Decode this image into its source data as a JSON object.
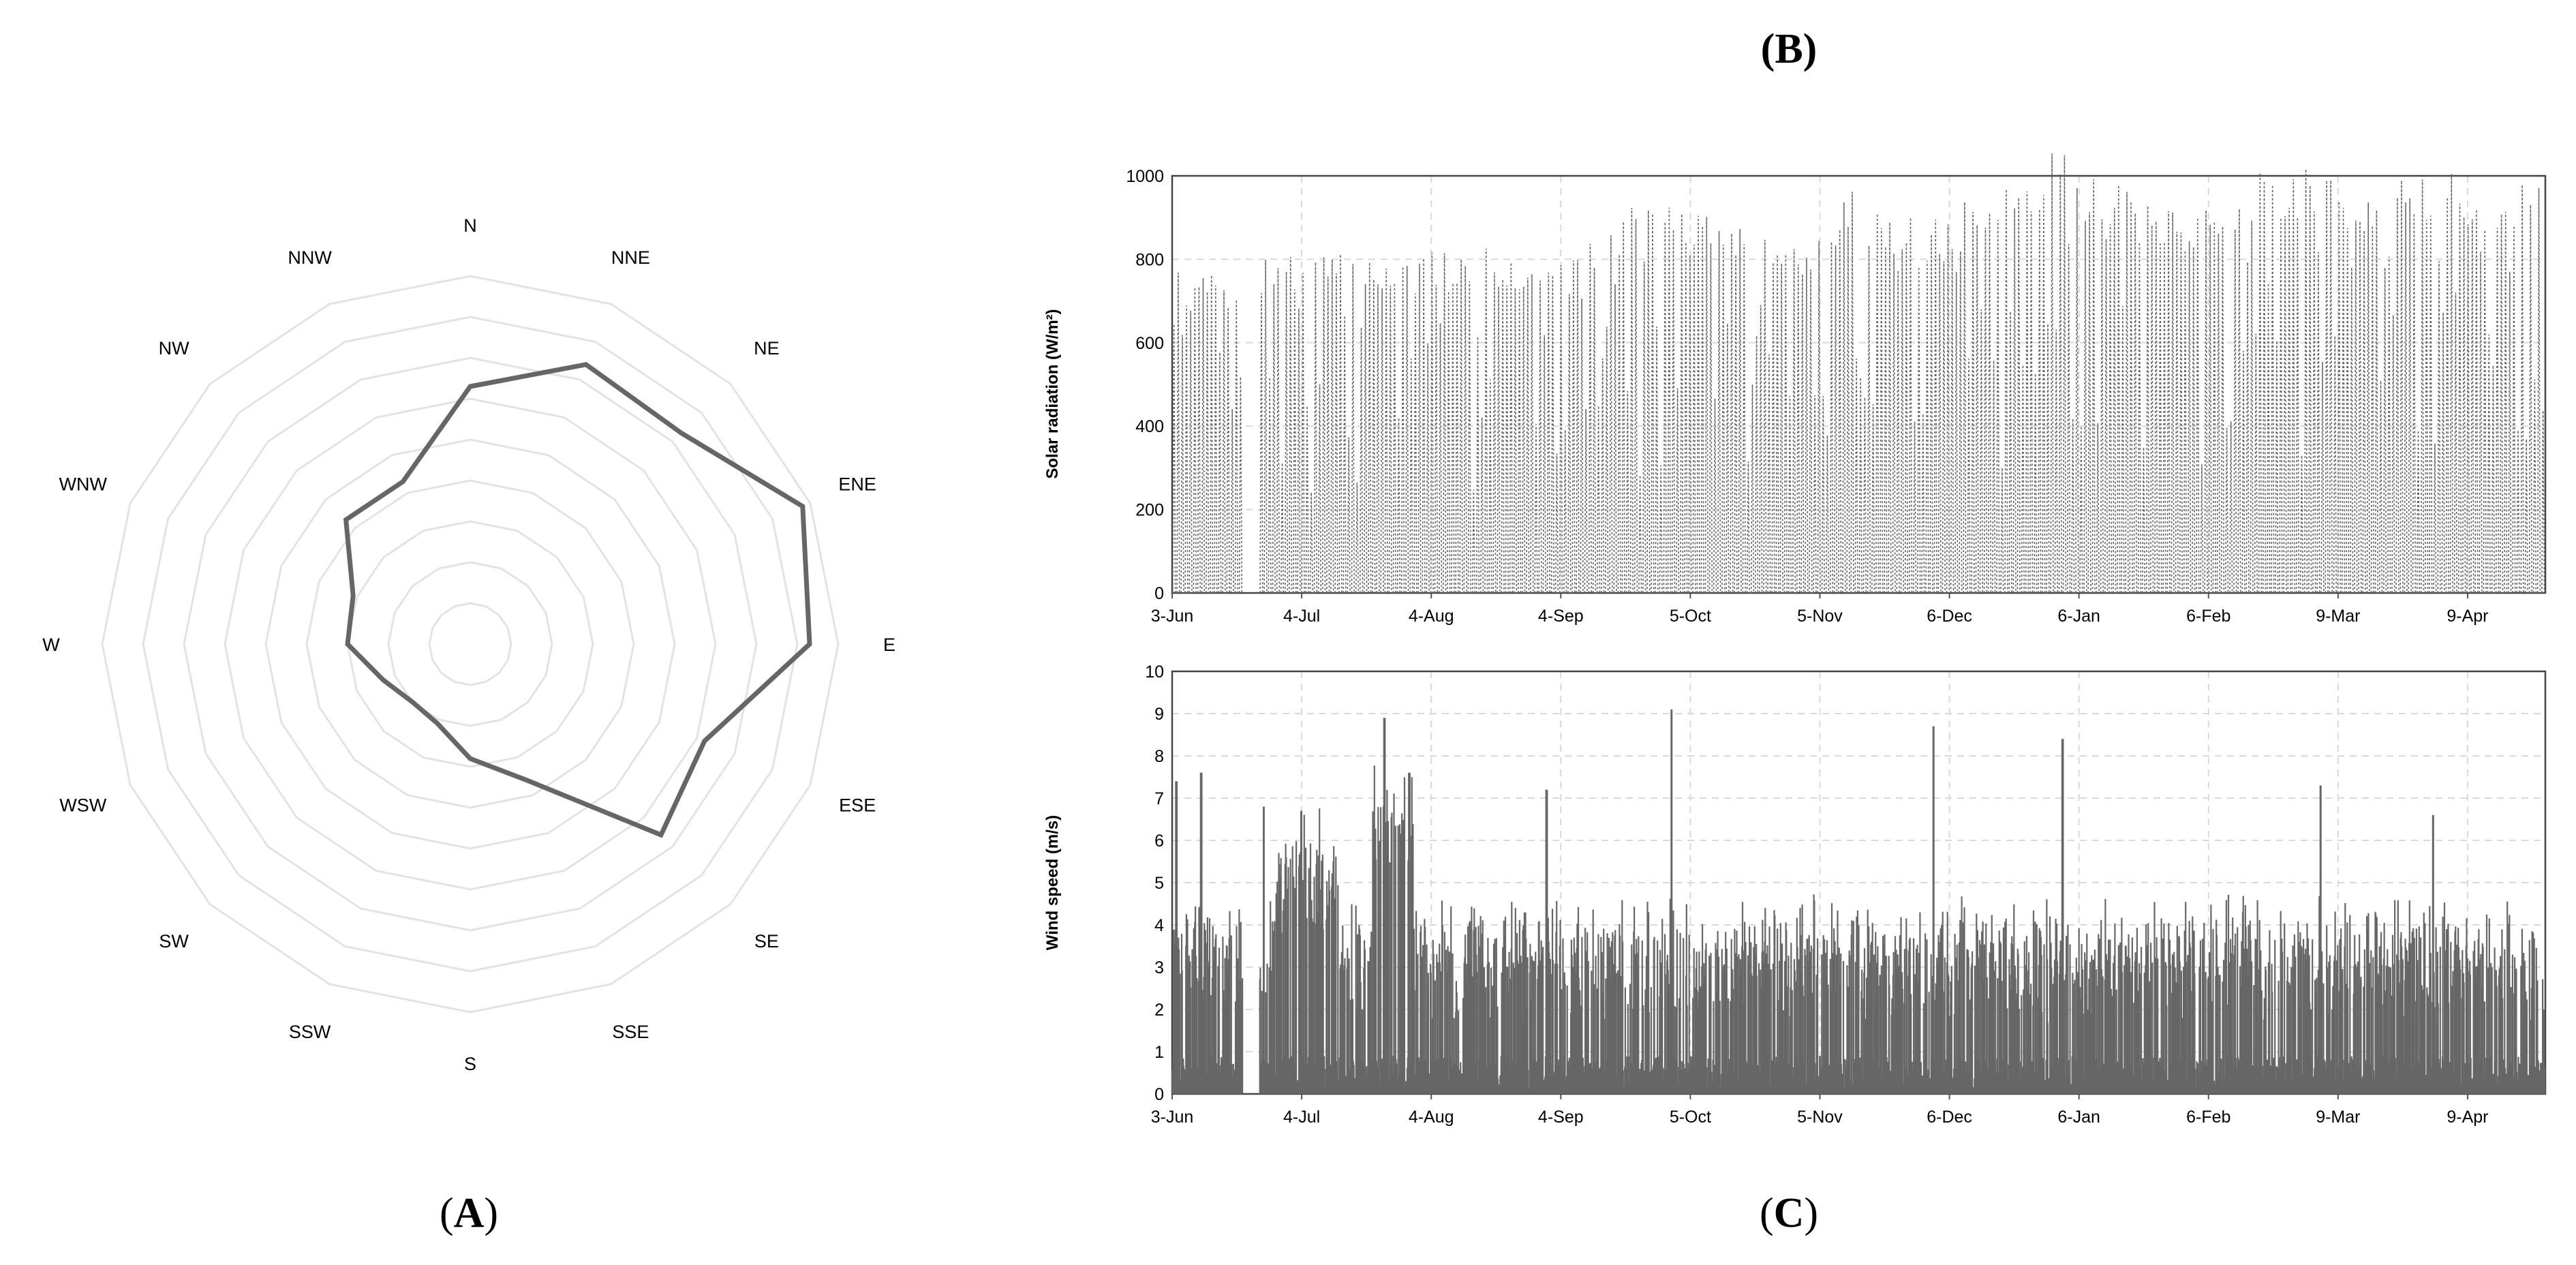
{
  "labels": {
    "a": "(A)",
    "b": "(B)",
    "c": "(C)",
    "a_letter": "A",
    "c_letter": "C"
  },
  "colors": {
    "series": "#666666",
    "grid": "#d9d9d9",
    "axis": "#000000"
  },
  "chart_data": [
    {
      "type": "radar",
      "panel": "A",
      "directions": [
        "N",
        "NNE",
        "NE",
        "ENE",
        "E",
        "ESE",
        "SE",
        "SSE",
        "S",
        "SSW",
        "SW",
        "WSW",
        "W",
        "WNW",
        "NW",
        "NNW"
      ],
      "rings": 9,
      "values": [
        6.3,
        7.4,
        7.3,
        8.8,
        8.3,
        6.2,
        6.6,
        3.6,
        2.8,
        2.1,
        2.0,
        2.3,
        3.0,
        3.1,
        4.3,
        4.3
      ],
      "grid": true
    },
    {
      "type": "line",
      "panel": "B",
      "ylabel": "Solar radiation (W/m²)",
      "ylim": [
        0,
        1000
      ],
      "yticks": [
        0,
        200,
        400,
        600,
        800,
        1000
      ],
      "xticks": [
        "3-Jun",
        "4-Jul",
        "4-Aug",
        "4-Sep",
        "5-Oct",
        "5-Nov",
        "6-Dec",
        "6-Jan",
        "6-Feb",
        "9-Mar",
        "9-Apr"
      ],
      "xrange_days": 330,
      "data_gap_days": [
        17,
        21
      ],
      "grid": true,
      "style": "dashed",
      "series": [
        {
          "values_description_daily_max": [
            760,
            770,
            790,
            800,
            800,
            790,
            800,
            810,
            800,
            790,
            900,
            920,
            900,
            880,
            860,
            840,
            950,
            900,
            880,
            950,
            1000,
            1070,
            980,
            920,
            900,
            940,
            990,
            1000,
            960,
            980,
            990,
            960,
            1000
          ]
        }
      ]
    },
    {
      "type": "line",
      "panel": "C",
      "ylabel": "Wind speed (m/s)",
      "ylim": [
        0,
        10
      ],
      "yticks": [
        0,
        1,
        2,
        3,
        4,
        5,
        6,
        7,
        8,
        9,
        10
      ],
      "xticks": [
        "3-Jun",
        "4-Jul",
        "4-Aug",
        "4-Sep",
        "5-Oct",
        "5-Nov",
        "6-Dec",
        "6-Jan",
        "6-Feb",
        "9-Mar",
        "9-Apr"
      ],
      "xrange_days": 330,
      "data_gap_days": [
        17,
        21
      ],
      "grid": true,
      "style": "solid",
      "series": [
        {
          "peaks": [
            [
              1,
              7.4
            ],
            [
              7,
              7.6
            ],
            [
              22,
              6.8
            ],
            [
              31,
              6.7
            ],
            [
              51,
              8.9
            ],
            [
              57,
              7.6
            ],
            [
              120,
              9.1
            ],
            [
              183,
              8.7
            ],
            [
              214,
              8.4
            ],
            [
              276,
              7.3
            ],
            [
              303,
              6.6
            ],
            [
              90,
              7.2
            ]
          ]
        }
      ]
    }
  ]
}
